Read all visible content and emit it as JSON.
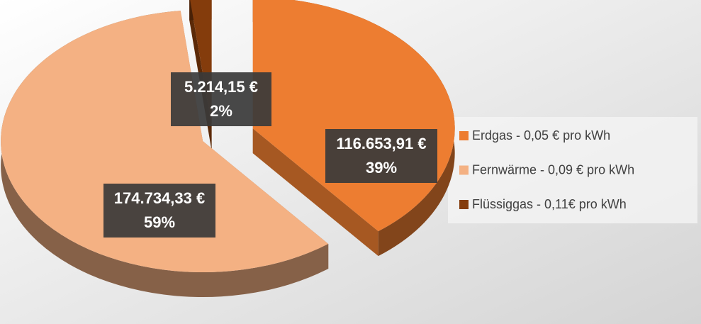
{
  "chart_data": {
    "type": "pie",
    "categories": [
      "Erdgas - 0,05 € pro kWh",
      "Fernwärme - 0,09 € pro kWh",
      "Flüssiggas - 0,11€ pro kWh"
    ],
    "values": [
      116653.91,
      174734.33,
      5214.15
    ],
    "value_labels": [
      "116.653,91 €",
      "174.734,33 €",
      "5.214,15 €"
    ],
    "percent_values": [
      39,
      59,
      2
    ],
    "percent_labels": [
      "39%",
      "59%",
      "2%"
    ],
    "colors": [
      "#ED7D31",
      "#F4B183",
      "#843C0C"
    ],
    "legend": "right"
  }
}
